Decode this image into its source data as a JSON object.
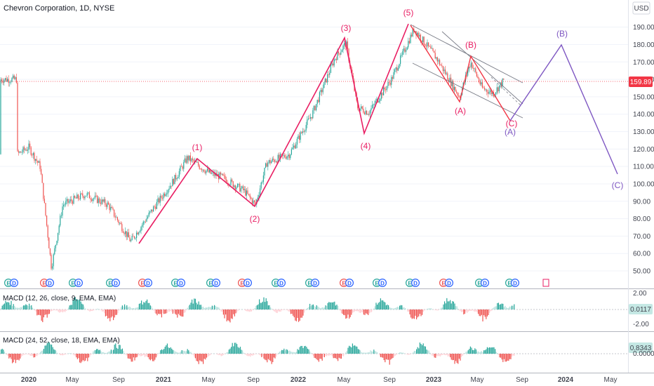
{
  "header": {
    "title": "Chevron Corporation, 1D, NYSE",
    "currency": "USD"
  },
  "colors": {
    "up": "#26a69a",
    "down": "#ef5350",
    "wave_impulse": "#e91e63",
    "wave_corrective": "#7e57c2",
    "wave_minor": "#f23645",
    "channel": "#787b86",
    "price_line": "#f23645",
    "macd_line": "#26a69a"
  },
  "chart_data": [
    {
      "type": "candlestick",
      "title": "Chevron Corporation, 1D, NYSE",
      "ylabel": "USD",
      "y_ticks": [
        50,
        60,
        70,
        80,
        90,
        100,
        110,
        120,
        130,
        140,
        150,
        160,
        170,
        180,
        190
      ],
      "x_ticks": [
        "2020",
        "May",
        "Sep",
        "2021",
        "May",
        "Sep",
        "2022",
        "May",
        "Sep",
        "2023",
        "May",
        "Sep",
        "2024",
        "May"
      ],
      "current_price": "159.89",
      "price_path": [
        [
          "2019-12",
          117
        ],
        [
          "2020-01",
          121
        ],
        [
          "2020-02",
          110
        ],
        [
          "2020-03",
          52
        ],
        [
          "2020-04",
          88
        ],
        [
          "2020-06",
          94
        ],
        [
          "2020-08",
          88
        ],
        [
          "2020-10",
          67
        ],
        [
          "2020-12",
          86
        ],
        [
          "2021-02",
          104
        ],
        [
          "2021-03",
          115
        ],
        [
          "2021-05",
          106
        ],
        [
          "2021-06",
          104
        ],
        [
          "2021-08",
          96
        ],
        [
          "2021-09",
          88
        ],
        [
          "2021-10",
          112
        ],
        [
          "2021-12",
          117
        ],
        [
          "2022-02",
          140
        ],
        [
          "2022-04",
          172
        ],
        [
          "2022-05",
          181
        ],
        [
          "2022-06",
          144
        ],
        [
          "2022-07",
          141
        ],
        [
          "2022-09",
          160
        ],
        [
          "2022-11",
          189
        ],
        [
          "2023-01",
          172
        ],
        [
          "2023-03",
          150
        ],
        [
          "2023-04",
          170
        ],
        [
          "2023-05",
          155
        ],
        [
          "2023-06",
          152
        ],
        [
          "2023-07",
          160
        ]
      ],
      "wave_labels": [
        {
          "label": "(1)",
          "date": "2021-03",
          "value": 116,
          "role": "impulse"
        },
        {
          "label": "(2)",
          "date": "2021-09",
          "value": 88,
          "role": "impulse"
        },
        {
          "label": "(3)",
          "date": "2022-04",
          "value": 185,
          "role": "impulse"
        },
        {
          "label": "(4)",
          "date": "2022-06",
          "value": 130,
          "role": "impulse"
        },
        {
          "label": "(5)",
          "date": "2022-11",
          "value": 194,
          "role": "impulse"
        },
        {
          "label": "(A)",
          "date": "2023-03",
          "value": 148,
          "role": "minor"
        },
        {
          "label": "(B)",
          "date": "2023-04",
          "value": 175,
          "role": "minor"
        },
        {
          "label": "(C)",
          "date": "2023-08",
          "value": 138,
          "role": "minor"
        },
        {
          "label": "(A)",
          "date": "2023-08",
          "value": 138,
          "role": "corrective"
        },
        {
          "label": "(B)",
          "date": "2023-12",
          "value": 181,
          "role": "corrective"
        },
        {
          "label": "(C)",
          "date": "2024-05",
          "value": 106,
          "role": "corrective"
        }
      ],
      "event_markers": [
        "E",
        "D",
        "E",
        "D",
        "E",
        "D",
        "E",
        "D",
        "E",
        "D",
        "E",
        "D",
        "E",
        "D",
        "E",
        "D",
        "E",
        "D",
        "E",
        "D",
        "E",
        "D",
        "E",
        "D",
        "E",
        "D",
        "E",
        "D",
        "E",
        "D",
        "E",
        "D",
        "E",
        "D"
      ]
    },
    {
      "type": "bar",
      "title": "MACD (12, 26, close, 9, EMA, EMA)",
      "y_ticks": [
        "2.00",
        "-2.00"
      ],
      "current_value": "0.0117"
    },
    {
      "type": "bar",
      "title": "MACD (24, 52, close, 18, EMA, EMA)",
      "y_ticks": [
        "0.0000"
      ],
      "current_value": "0.8343"
    }
  ]
}
